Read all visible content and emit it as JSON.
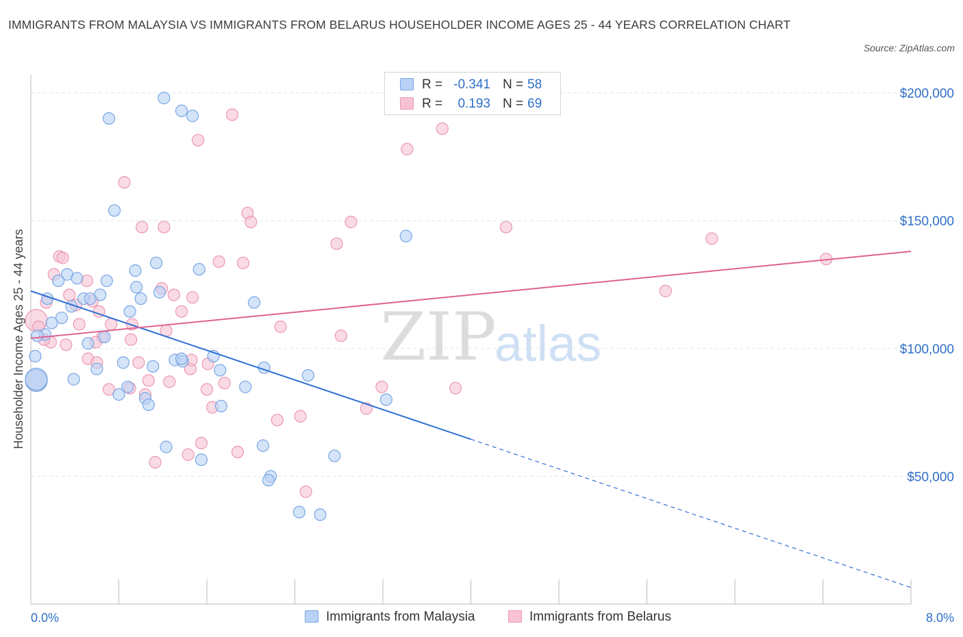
{
  "title": "IMMIGRANTS FROM MALAYSIA VS IMMIGRANTS FROM BELARUS HOUSEHOLDER INCOME AGES 25 - 44 YEARS CORRELATION CHART",
  "source": "Source: ZipAtlas.com",
  "watermark": {
    "zip": "ZIP",
    "atlas": "atlas"
  },
  "colors": {
    "malaysia_fill": "#b7d2f5",
    "malaysia_stroke": "#7aa6e3",
    "malaysia_line": "#2e6fd2",
    "belarus_fill": "#f7c3d3",
    "belarus_stroke": "#eb97b3",
    "belarus_line": "#e0628f",
    "axis_label": "#2f6fc7"
  },
  "legend": {
    "r_label": "R =",
    "n_label": "N =",
    "rows": [
      {
        "r": "-0.341",
        "n": "58",
        "series": "malaysia"
      },
      {
        "r": "0.193",
        "n": "69",
        "series": "belarus"
      }
    ]
  },
  "chart_data": {
    "type": "scatter",
    "title": "IMMIGRANTS FROM MALAYSIA VS IMMIGRANTS FROM BELARUS HOUSEHOLDER INCOME AGES 25 - 44 YEARS CORRELATION CHART",
    "xlabel": "",
    "ylabel": "Householder Income Ages 25 - 44 years",
    "xlim": [
      0,
      8
    ],
    "ylim": [
      0,
      205000
    ],
    "x_tick_labels": [
      "0.0%",
      "8.0%"
    ],
    "y_ticks": [
      {
        "value": 50000,
        "label": "$50,000"
      },
      {
        "value": 100000,
        "label": "$100,000"
      },
      {
        "value": 150000,
        "label": "$150,000"
      },
      {
        "value": 200000,
        "label": "$200,000"
      }
    ],
    "grid": "horizontal dashed",
    "series": [
      {
        "name": "Immigrants from Malaysia",
        "color": "#7aa6e3",
        "trend": {
          "x": [
            0.0,
            4.0,
            8.0
          ],
          "y": [
            122500,
            64500,
            6500
          ],
          "solid_until": 4.0
        },
        "points": [
          [
            1.21,
            198000
          ],
          [
            0.71,
            190000
          ],
          [
            1.37,
            193000
          ],
          [
            1.47,
            191000
          ],
          [
            0.76,
            154000
          ],
          [
            3.41,
            144000
          ],
          [
            1.14,
            133500
          ],
          [
            0.95,
            130500
          ],
          [
            1.53,
            131000
          ],
          [
            0.33,
            129000
          ],
          [
            0.25,
            126500
          ],
          [
            0.42,
            127500
          ],
          [
            0.69,
            126500
          ],
          [
            0.96,
            124000
          ],
          [
            0.15,
            119500
          ],
          [
            0.63,
            121000
          ],
          [
            1.17,
            122000
          ],
          [
            1.0,
            119500
          ],
          [
            0.37,
            116500
          ],
          [
            0.48,
            119500
          ],
          [
            0.54,
            119500
          ],
          [
            2.03,
            118000
          ],
          [
            0.9,
            114500
          ],
          [
            0.28,
            112000
          ],
          [
            0.19,
            110000
          ],
          [
            0.13,
            105500
          ],
          [
            0.67,
            104500
          ],
          [
            0.52,
            102000
          ],
          [
            0.06,
            105000
          ],
          [
            0.04,
            97000
          ],
          [
            1.31,
            95500
          ],
          [
            1.66,
            97000
          ],
          [
            0.84,
            94500
          ],
          [
            1.38,
            95000
          ],
          [
            1.11,
            93000
          ],
          [
            2.12,
            92500
          ],
          [
            1.72,
            91500
          ],
          [
            0.6,
            92000
          ],
          [
            2.52,
            89500
          ],
          [
            0.39,
            88000
          ],
          [
            0.88,
            85000
          ],
          [
            1.95,
            85000
          ],
          [
            0.8,
            82000
          ],
          [
            3.23,
            80000
          ],
          [
            1.04,
            80500
          ],
          [
            1.07,
            78000
          ],
          [
            1.73,
            77500
          ],
          [
            0.0,
            87500
          ],
          [
            1.23,
            61500
          ],
          [
            2.11,
            62000
          ],
          [
            1.55,
            56500
          ],
          [
            2.76,
            58000
          ],
          [
            2.18,
            50000
          ],
          [
            2.16,
            48500
          ],
          [
            2.44,
            36000
          ],
          [
            2.63,
            35000
          ],
          [
            1.37,
            96000
          ],
          [
            0.0,
            88000
          ]
        ]
      },
      {
        "name": "Immigrants from Belarus",
        "color": "#eb97b3",
        "trend": {
          "x": [
            0.0,
            8.0
          ],
          "y": [
            104000,
            138000
          ]
        },
        "points": [
          [
            1.83,
            191500
          ],
          [
            3.74,
            186000
          ],
          [
            1.52,
            181500
          ],
          [
            3.42,
            178000
          ],
          [
            0.85,
            165000
          ],
          [
            1.97,
            153000
          ],
          [
            2.0,
            149500
          ],
          [
            2.91,
            149500
          ],
          [
            1.01,
            147500
          ],
          [
            1.21,
            147500
          ],
          [
            4.32,
            147500
          ],
          [
            6.19,
            143000
          ],
          [
            2.78,
            141000
          ],
          [
            0.26,
            136000
          ],
          [
            0.29,
            135500
          ],
          [
            7.23,
            135000
          ],
          [
            1.71,
            134000
          ],
          [
            1.93,
            133500
          ],
          [
            0.21,
            129000
          ],
          [
            0.51,
            126500
          ],
          [
            1.19,
            123500
          ],
          [
            0.35,
            121000
          ],
          [
            1.3,
            121000
          ],
          [
            1.47,
            120000
          ],
          [
            5.77,
            122500
          ],
          [
            0.14,
            118000
          ],
          [
            0.41,
            117000
          ],
          [
            0.56,
            118500
          ],
          [
            0.62,
            114500
          ],
          [
            1.37,
            114500
          ],
          [
            0.0,
            111000
          ],
          [
            0.07,
            108500
          ],
          [
            0.44,
            109500
          ],
          [
            0.73,
            109500
          ],
          [
            0.92,
            109500
          ],
          [
            0.65,
            104500
          ],
          [
            1.23,
            107000
          ],
          [
            2.27,
            108500
          ],
          [
            2.82,
            105000
          ],
          [
            0.18,
            102500
          ],
          [
            0.32,
            101500
          ],
          [
            0.59,
            102500
          ],
          [
            0.91,
            103500
          ],
          [
            0.12,
            103500
          ],
          [
            0.52,
            96000
          ],
          [
            0.6,
            94500
          ],
          [
            0.98,
            94500
          ],
          [
            1.45,
            92000
          ],
          [
            1.46,
            95500
          ],
          [
            1.61,
            94000
          ],
          [
            1.07,
            87500
          ],
          [
            1.26,
            87000
          ],
          [
            0.71,
            84000
          ],
          [
            0.9,
            84500
          ],
          [
            1.6,
            84000
          ],
          [
            1.76,
            86500
          ],
          [
            3.19,
            85000
          ],
          [
            3.86,
            84500
          ],
          [
            1.04,
            82000
          ],
          [
            1.65,
            77000
          ],
          [
            3.05,
            76500
          ],
          [
            2.24,
            72000
          ],
          [
            2.45,
            73500
          ],
          [
            1.55,
            63000
          ],
          [
            1.43,
            58500
          ],
          [
            1.88,
            59500
          ],
          [
            1.13,
            55500
          ],
          [
            2.5,
            44000
          ],
          [
            0.0,
            87500
          ]
        ]
      }
    ]
  },
  "bottom_legend": [
    {
      "label": "Immigrants from Malaysia",
      "series": "malaysia"
    },
    {
      "label": "Immigrants from Belarus",
      "series": "belarus"
    }
  ]
}
